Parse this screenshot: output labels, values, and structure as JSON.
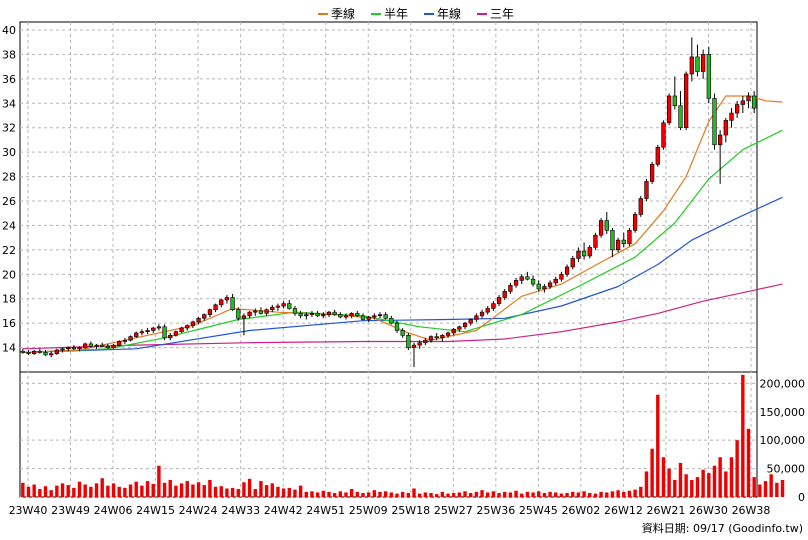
{
  "chart_data": {
    "type": "candlestick+volume",
    "legend": [
      {
        "name": "季線",
        "color": "#e07b20"
      },
      {
        "name": "半年",
        "color": "#22cc22"
      },
      {
        "name": "年線",
        "color": "#2255dd"
      },
      {
        "name": "三年",
        "color": "#cc2288"
      }
    ],
    "price_axis": {
      "min": 12,
      "max": 40,
      "ticks": [
        "40",
        "38",
        "36",
        "34",
        "32",
        "30",
        "28",
        "26",
        "24",
        "22",
        "20",
        "18",
        "16",
        "14"
      ]
    },
    "volume_axis": {
      "min": 0,
      "max": 220000,
      "ticks": [
        "200,000",
        "150,000",
        "100,000",
        "50,000",
        "0"
      ]
    },
    "x_ticks": [
      "23W40",
      "23W49",
      "24W06",
      "24W15",
      "24W24",
      "24W33",
      "24W42",
      "24W51",
      "25W09",
      "25W18",
      "25W27",
      "25W36",
      "25W45",
      "26W02",
      "26W12",
      "26W21",
      "26W30",
      "26W38"
    ],
    "candles": [
      [
        13.7,
        13.9,
        13.5,
        13.6
      ],
      [
        13.6,
        13.8,
        13.4,
        13.5
      ],
      [
        13.5,
        13.8,
        13.4,
        13.7
      ],
      [
        13.7,
        13.9,
        13.5,
        13.6
      ],
      [
        13.6,
        13.8,
        13.3,
        13.4
      ],
      [
        13.4,
        13.7,
        13.2,
        13.5
      ],
      [
        13.5,
        13.9,
        13.4,
        13.8
      ],
      [
        13.8,
        14.0,
        13.6,
        13.9
      ],
      [
        13.9,
        14.1,
        13.7,
        14.0
      ],
      [
        14.0,
        14.2,
        13.8,
        13.9
      ],
      [
        13.9,
        14.1,
        13.7,
        14.0
      ],
      [
        14.0,
        14.4,
        13.9,
        14.3
      ],
      [
        14.3,
        14.5,
        14.0,
        14.1
      ],
      [
        14.1,
        14.3,
        13.9,
        14.2
      ],
      [
        14.2,
        14.4,
        14.0,
        14.1
      ],
      [
        14.1,
        14.3,
        13.9,
        14.0
      ],
      [
        14.0,
        14.3,
        13.9,
        14.2
      ],
      [
        14.2,
        14.6,
        14.1,
        14.5
      ],
      [
        14.5,
        14.8,
        14.3,
        14.6
      ],
      [
        14.6,
        15.0,
        14.5,
        14.9
      ],
      [
        14.9,
        15.3,
        14.8,
        15.2
      ],
      [
        15.2,
        15.5,
        15.0,
        15.3
      ],
      [
        15.3,
        15.6,
        15.1,
        15.4
      ],
      [
        15.4,
        15.7,
        15.2,
        15.6
      ],
      [
        15.6,
        15.9,
        15.4,
        15.7
      ],
      [
        15.7,
        15.9,
        14.6,
        14.8
      ],
      [
        14.8,
        15.2,
        14.6,
        15.0
      ],
      [
        15.0,
        15.4,
        14.9,
        15.3
      ],
      [
        15.3,
        15.7,
        15.2,
        15.6
      ],
      [
        15.6,
        15.9,
        15.4,
        15.8
      ],
      [
        15.8,
        16.2,
        15.6,
        16.1
      ],
      [
        16.1,
        16.5,
        15.9,
        16.4
      ],
      [
        16.4,
        16.8,
        16.2,
        16.7
      ],
      [
        16.7,
        17.2,
        16.5,
        17.1
      ],
      [
        17.1,
        17.6,
        16.9,
        17.5
      ],
      [
        17.5,
        18.0,
        17.3,
        17.9
      ],
      [
        17.9,
        18.3,
        17.6,
        18.1
      ],
      [
        18.1,
        18.4,
        17.0,
        17.1
      ],
      [
        17.1,
        17.3,
        16.2,
        16.4
      ],
      [
        16.4,
        16.8,
        15.0,
        16.6
      ],
      [
        16.6,
        17.0,
        16.4,
        16.9
      ],
      [
        16.9,
        17.2,
        16.6,
        17.0
      ],
      [
        17.0,
        17.3,
        16.7,
        16.8
      ],
      [
        16.8,
        17.2,
        16.6,
        17.1
      ],
      [
        17.1,
        17.5,
        16.9,
        17.3
      ],
      [
        17.3,
        17.6,
        17.0,
        17.4
      ],
      [
        17.4,
        17.8,
        17.2,
        17.6
      ],
      [
        17.6,
        17.9,
        17.1,
        17.2
      ],
      [
        17.2,
        17.4,
        16.6,
        16.8
      ],
      [
        16.8,
        17.0,
        16.4,
        16.6
      ],
      [
        16.6,
        16.9,
        16.3,
        16.7
      ],
      [
        16.7,
        17.0,
        16.5,
        16.8
      ],
      [
        16.8,
        17.0,
        16.5,
        16.6
      ],
      [
        16.6,
        16.9,
        16.4,
        16.7
      ],
      [
        16.7,
        17.0,
        16.5,
        16.9
      ],
      [
        16.9,
        17.1,
        16.6,
        16.7
      ],
      [
        16.7,
        16.9,
        16.4,
        16.5
      ],
      [
        16.5,
        16.8,
        16.3,
        16.6
      ],
      [
        16.6,
        16.9,
        16.4,
        16.8
      ],
      [
        16.8,
        17.0,
        16.5,
        16.6
      ],
      [
        16.6,
        16.8,
        16.2,
        16.3
      ],
      [
        16.3,
        16.6,
        16.1,
        16.5
      ],
      [
        16.5,
        16.8,
        16.3,
        16.6
      ],
      [
        16.6,
        16.9,
        16.4,
        16.7
      ],
      [
        16.7,
        16.9,
        16.3,
        16.4
      ],
      [
        16.4,
        16.6,
        15.9,
        16.0
      ],
      [
        16.0,
        16.2,
        15.2,
        15.4
      ],
      [
        15.4,
        15.6,
        14.8,
        15.0
      ],
      [
        15.0,
        15.2,
        13.8,
        14.0
      ],
      [
        14.0,
        14.4,
        12.4,
        14.2
      ],
      [
        14.2,
        14.6,
        13.9,
        14.4
      ],
      [
        14.4,
        14.8,
        14.2,
        14.6
      ],
      [
        14.6,
        15.0,
        14.4,
        14.9
      ],
      [
        14.9,
        15.2,
        14.6,
        14.8
      ],
      [
        14.8,
        15.1,
        14.5,
        15.0
      ],
      [
        15.0,
        15.3,
        14.8,
        15.2
      ],
      [
        15.2,
        15.6,
        15.0,
        15.5
      ],
      [
        15.5,
        15.8,
        15.3,
        15.7
      ],
      [
        15.7,
        16.1,
        15.5,
        16.0
      ],
      [
        16.0,
        16.4,
        15.8,
        16.3
      ],
      [
        16.3,
        16.8,
        16.1,
        16.6
      ],
      [
        16.6,
        17.1,
        16.4,
        16.9
      ],
      [
        16.9,
        17.4,
        16.7,
        17.2
      ],
      [
        17.2,
        17.8,
        17.0,
        17.6
      ],
      [
        17.6,
        18.3,
        17.4,
        18.1
      ],
      [
        18.1,
        18.8,
        17.9,
        18.6
      ],
      [
        18.6,
        19.3,
        18.4,
        19.1
      ],
      [
        19.1,
        19.7,
        18.9,
        19.5
      ],
      [
        19.5,
        20.0,
        19.2,
        19.8
      ],
      [
        19.8,
        20.2,
        19.5,
        19.6
      ],
      [
        19.6,
        19.9,
        19.0,
        19.2
      ],
      [
        19.2,
        19.5,
        18.6,
        18.8
      ],
      [
        18.8,
        19.2,
        18.5,
        19.0
      ],
      [
        19.0,
        19.5,
        18.8,
        19.3
      ],
      [
        19.3,
        19.8,
        19.1,
        19.6
      ],
      [
        19.6,
        20.2,
        19.4,
        20.0
      ],
      [
        20.0,
        20.8,
        19.8,
        20.6
      ],
      [
        20.6,
        21.5,
        20.4,
        21.3
      ],
      [
        21.3,
        22.2,
        21.0,
        21.9
      ],
      [
        21.9,
        22.6,
        21.2,
        21.5
      ],
      [
        21.5,
        22.4,
        21.3,
        22.2
      ],
      [
        22.2,
        23.4,
        22.0,
        23.2
      ],
      [
        23.2,
        24.6,
        23.0,
        24.4
      ],
      [
        24.4,
        25.1,
        23.3,
        23.6
      ],
      [
        23.6,
        23.8,
        21.4,
        22.0
      ],
      [
        22.0,
        23.0,
        21.8,
        22.8
      ],
      [
        22.8,
        23.4,
        22.2,
        22.5
      ],
      [
        22.5,
        23.8,
        22.3,
        23.6
      ],
      [
        23.6,
        25.1,
        23.4,
        24.9
      ],
      [
        24.9,
        26.4,
        24.7,
        26.2
      ],
      [
        26.2,
        27.8,
        26.0,
        27.6
      ],
      [
        27.6,
        29.2,
        27.4,
        29.0
      ],
      [
        29.0,
        30.6,
        28.8,
        30.4
      ],
      [
        30.4,
        32.6,
        30.2,
        32.4
      ],
      [
        32.4,
        34.8,
        32.2,
        34.6
      ],
      [
        34.6,
        36.2,
        33.5,
        33.8
      ],
      [
        33.8,
        35.0,
        31.8,
        32.0
      ],
      [
        32.0,
        36.6,
        31.8,
        36.4
      ],
      [
        36.4,
        39.4,
        35.8,
        37.8
      ],
      [
        37.8,
        38.8,
        36.2,
        36.6
      ],
      [
        36.6,
        38.4,
        36.0,
        38.0
      ],
      [
        38.0,
        38.6,
        34.0,
        34.4
      ],
      [
        34.4,
        34.8,
        30.2,
        30.6
      ],
      [
        30.6,
        31.8,
        27.4,
        31.4
      ],
      [
        31.4,
        32.8,
        30.8,
        32.6
      ],
      [
        32.6,
        33.6,
        32.0,
        33.2
      ],
      [
        33.2,
        34.2,
        32.8,
        33.9
      ],
      [
        33.9,
        34.6,
        33.2,
        34.2
      ],
      [
        34.2,
        34.9,
        33.6,
        34.6
      ],
      [
        34.6,
        35.0,
        33.2,
        33.6
      ]
    ],
    "volumes": [
      25000,
      18000,
      22000,
      14000,
      19000,
      12000,
      20000,
      24000,
      21000,
      16000,
      27000,
      22000,
      18000,
      24000,
      33000,
      20000,
      24000,
      18000,
      16000,
      22000,
      27000,
      20000,
      28000,
      23000,
      55000,
      25000,
      30000,
      20000,
      24000,
      28000,
      22000,
      26000,
      21000,
      30000,
      18000,
      19000,
      15000,
      16000,
      14000,
      26000,
      32000,
      14000,
      28000,
      21000,
      24000,
      18000,
      15000,
      16000,
      13000,
      20000,
      9000,
      10000,
      8000,
      11000,
      9000,
      7000,
      10000,
      8000,
      14000,
      9000,
      7000,
      8000,
      12000,
      9000,
      10000,
      8000,
      6000,
      9000,
      7000,
      15000,
      6000,
      8000,
      7000,
      5000,
      9000,
      6000,
      7000,
      8000,
      10000,
      7000,
      9000,
      12000,
      8000,
      10000,
      7000,
      9000,
      8000,
      11000,
      6000,
      9000,
      8000,
      10000,
      7000,
      9000,
      8000,
      6000,
      7000,
      9000,
      8000,
      10000,
      7000,
      6000,
      9000,
      8000,
      10000,
      12000,
      9000,
      11000,
      13000,
      18000,
      45000,
      85000,
      180000,
      70000,
      50000,
      30000,
      60000,
      40000,
      30000,
      35000,
      48000,
      42000,
      55000,
      70000,
      45000,
      70000,
      100000,
      215000,
      120000,
      35000,
      22000,
      28000,
      40000,
      25000,
      30000
    ],
    "ma_quarter": [
      [
        0,
        13.6
      ],
      [
        10,
        13.8
      ],
      [
        20,
        14.8
      ],
      [
        30,
        15.8
      ],
      [
        37,
        17.2
      ],
      [
        45,
        16.9
      ],
      [
        55,
        16.7
      ],
      [
        62,
        16.4
      ],
      [
        68,
        15.2
      ],
      [
        72,
        14.6
      ],
      [
        80,
        15.4
      ],
      [
        88,
        18.2
      ],
      [
        95,
        19.2
      ],
      [
        102,
        21.0
      ],
      [
        108,
        22.5
      ],
      [
        113,
        25.2
      ],
      [
        117,
        28.0
      ],
      [
        121,
        32.5
      ],
      [
        124,
        34.6
      ],
      [
        128,
        34.6
      ],
      [
        131,
        34.2
      ],
      [
        134,
        34.1
      ]
    ],
    "ma_half": [
      [
        0,
        13.6
      ],
      [
        15,
        13.9
      ],
      [
        25,
        14.8
      ],
      [
        38,
        16.3
      ],
      [
        48,
        16.9
      ],
      [
        60,
        16.6
      ],
      [
        70,
        15.7
      ],
      [
        78,
        15.3
      ],
      [
        88,
        16.7
      ],
      [
        98,
        19.0
      ],
      [
        108,
        21.4
      ],
      [
        115,
        24.2
      ],
      [
        121,
        27.8
      ],
      [
        127,
        30.2
      ],
      [
        134,
        31.8
      ]
    ],
    "ma_year": [
      [
        0,
        13.6
      ],
      [
        20,
        13.9
      ],
      [
        40,
        15.4
      ],
      [
        60,
        16.2
      ],
      [
        75,
        16.3
      ],
      [
        85,
        16.4
      ],
      [
        95,
        17.4
      ],
      [
        105,
        19.0
      ],
      [
        112,
        20.8
      ],
      [
        118,
        22.8
      ],
      [
        126,
        24.6
      ],
      [
        134,
        26.3
      ]
    ],
    "ma_3year": [
      [
        0,
        13.9
      ],
      [
        20,
        14.2
      ],
      [
        40,
        14.4
      ],
      [
        60,
        14.5
      ],
      [
        75,
        14.5
      ],
      [
        85,
        14.7
      ],
      [
        95,
        15.3
      ],
      [
        105,
        16.1
      ],
      [
        112,
        16.8
      ],
      [
        120,
        17.8
      ],
      [
        128,
        18.6
      ],
      [
        134,
        19.2
      ]
    ]
  },
  "footer": {
    "source": "資料日期: 09/17  (Goodinfo.tw)"
  }
}
